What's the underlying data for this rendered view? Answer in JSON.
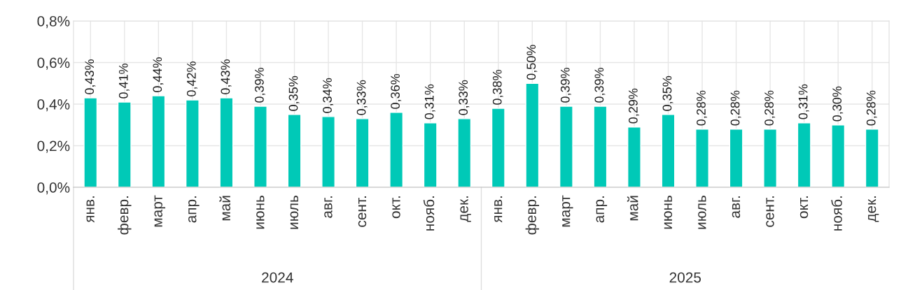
{
  "chart_data": {
    "type": "bar",
    "categories": [
      "янв.",
      "февр.",
      "март",
      "апр.",
      "май",
      "июнь",
      "июль",
      "авг.",
      "сент.",
      "окт.",
      "нояб.",
      "дек.",
      "янв.",
      "февр.",
      "март",
      "апр.",
      "май",
      "июнь",
      "июль",
      "авг.",
      "сент.",
      "окт.",
      "нояб.",
      "дек."
    ],
    "values": [
      0.43,
      0.41,
      0.44,
      0.42,
      0.43,
      0.39,
      0.35,
      0.34,
      0.33,
      0.36,
      0.31,
      0.33,
      0.38,
      0.5,
      0.39,
      0.39,
      0.29,
      0.35,
      0.28,
      0.28,
      0.28,
      0.31,
      0.3,
      0.28
    ],
    "value_labels": [
      "0,43%",
      "0,41%",
      "0,44%",
      "0,42%",
      "0,43%",
      "0,39%",
      "0,35%",
      "0,34%",
      "0,33%",
      "0,36%",
      "0,31%",
      "0,33%",
      "0,38%",
      "0,50%",
      "0,39%",
      "0,39%",
      "0,29%",
      "0,35%",
      "0,28%",
      "0,28%",
      "0,28%",
      "0,31%",
      "0,30%",
      "0,28%"
    ],
    "color": "#00c9b7",
    "ylim": [
      0,
      0.8
    ],
    "yticks": [
      {
        "value": 0,
        "label": "0,0%"
      },
      {
        "value": 0.2,
        "label": "0,2%"
      },
      {
        "value": 0.4,
        "label": "0,4%"
      },
      {
        "value": 0.6,
        "label": "0,6%"
      },
      {
        "value": 0.8,
        "label": "0,8%"
      }
    ],
    "annotations": [
      "2024",
      "2025"
    ],
    "grid": true
  }
}
